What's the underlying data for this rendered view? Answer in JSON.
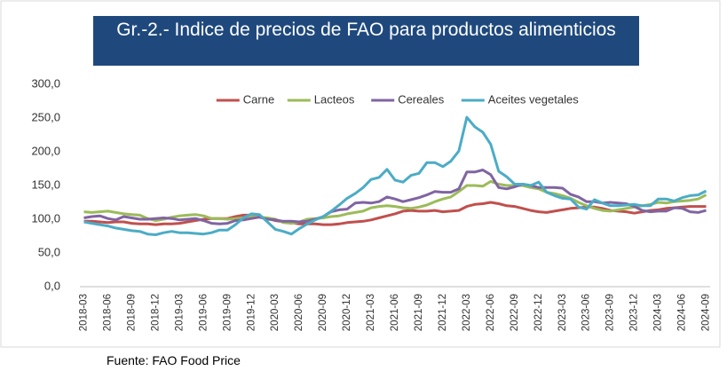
{
  "chart_data": {
    "type": "line",
    "title": "Gr.-2.- Indice de precios de FAO para productos alimenticios",
    "source": "Fuente: FAO Food Price",
    "categories": [
      "2018-03",
      null,
      null,
      "2018-06",
      null,
      null,
      "2018-09",
      null,
      null,
      "2018-12",
      null,
      null,
      "2019-03",
      null,
      null,
      "2019-06",
      null,
      null,
      "2019-09",
      null,
      null,
      "2019-12",
      null,
      null,
      "2020-03",
      null,
      null,
      "2020-06",
      null,
      null,
      "2020-09",
      null,
      null,
      "2020-12",
      null,
      null,
      "2021-03",
      null,
      null,
      "2021-06",
      null,
      null,
      "2021-09",
      null,
      null,
      "2021-12",
      null,
      null,
      "2022-03",
      null,
      null,
      "2022-06",
      null,
      null,
      "2022-09",
      null,
      null,
      "2022-12",
      null,
      null,
      "2023-03",
      null,
      null,
      "2023-06",
      null,
      null,
      "2023-09",
      null,
      null,
      "2023-12",
      null,
      null,
      "2024-03",
      null,
      null,
      "2024-06",
      null,
      null,
      "2024-09"
    ],
    "series": [
      {
        "name": "Carne",
        "color": "#c0504d",
        "values": [
          97,
          97,
          96,
          95,
          96,
          96,
          94,
          93,
          93,
          92,
          93,
          93,
          94,
          96,
          98,
          100,
          101,
          101,
          101,
          104,
          106,
          106,
          104,
          101,
          98,
          96,
          95,
          93,
          93,
          93,
          92,
          92,
          93,
          95,
          96,
          97,
          99,
          102,
          105,
          108,
          112,
          113,
          112,
          112,
          113,
          111,
          112,
          113,
          119,
          122,
          123,
          125,
          123,
          120,
          119,
          116,
          113,
          111,
          110,
          112,
          114,
          116,
          117,
          118,
          118,
          116,
          113,
          112,
          111,
          109,
          111,
          113,
          114,
          116,
          117,
          118,
          119,
          119,
          119
        ]
      },
      {
        "name": "Lacteos",
        "color": "#9bbb59",
        "values": [
          111,
          110,
          111,
          112,
          110,
          108,
          107,
          106,
          101,
          98,
          100,
          103,
          105,
          106,
          107,
          105,
          101,
          101,
          100,
          101,
          102,
          104,
          103,
          102,
          100,
          95,
          94,
          96,
          100,
          101,
          102,
          104,
          105,
          108,
          110,
          112,
          117,
          119,
          120,
          119,
          117,
          116,
          118,
          121,
          126,
          130,
          133,
          141,
          150,
          150,
          149,
          156,
          152,
          150,
          150,
          150,
          147,
          145,
          140,
          138,
          135,
          131,
          125,
          120,
          116,
          113,
          112,
          114,
          116,
          118,
          120,
          122,
          125,
          124,
          126,
          127,
          128,
          130,
          136
        ]
      },
      {
        "name": "Cereales",
        "color": "#8064a2",
        "values": [
          102,
          104,
          105,
          101,
          99,
          104,
          102,
          100,
          100,
          101,
          102,
          101,
          99,
          100,
          101,
          98,
          94,
          93,
          94,
          98,
          99,
          101,
          103,
          100,
          99,
          97,
          97,
          96,
          97,
          100,
          104,
          111,
          114,
          115,
          124,
          125,
          124,
          126,
          133,
          130,
          126,
          129,
          132,
          136,
          141,
          140,
          140,
          145,
          170,
          170,
          173,
          166,
          147,
          145,
          148,
          152,
          150,
          147,
          147,
          147,
          146,
          137,
          133,
          126,
          126,
          124,
          125,
          124,
          123,
          119,
          113,
          111,
          112,
          112,
          117,
          116,
          111,
          110,
          113
        ]
      },
      {
        "name": "Aceites vegetales",
        "color": "#4bacc6",
        "values": [
          96,
          94,
          92,
          90,
          87,
          85,
          83,
          82,
          78,
          77,
          80,
          82,
          80,
          80,
          79,
          78,
          80,
          84,
          84,
          92,
          102,
          108,
          107,
          96,
          85,
          82,
          78,
          86,
          93,
          99,
          104,
          112,
          121,
          131,
          138,
          147,
          159,
          162,
          174,
          158,
          155,
          165,
          168,
          184,
          184,
          178,
          186,
          201,
          251,
          237,
          229,
          211,
          171,
          163,
          152,
          152,
          150,
          155,
          140,
          135,
          131,
          130,
          118,
          115,
          129,
          124,
          120,
          120,
          121,
          122,
          120,
          120,
          130,
          130,
          127,
          132,
          135,
          136,
          142
        ]
      }
    ],
    "ylim": [
      0,
      300
    ],
    "yticks": [
      {
        "value": 0,
        "label": "0,0"
      },
      {
        "value": 50,
        "label": "50,0"
      },
      {
        "value": 100,
        "label": "100,0"
      },
      {
        "value": 150,
        "label": "150,0"
      },
      {
        "value": 200,
        "label": "200,0"
      },
      {
        "value": 250,
        "label": "250,0"
      },
      {
        "value": 300,
        "label": "300,0"
      }
    ],
    "grid": false,
    "legend": "top"
  }
}
